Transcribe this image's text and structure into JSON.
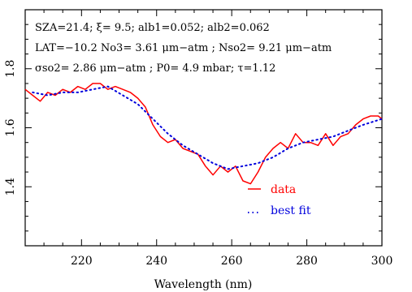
{
  "chart_data": {
    "type": "line",
    "title": "",
    "xlabel": "Wavelength (nm)",
    "ylabel": "",
    "xlim": [
      205,
      300
    ],
    "ylim": [
      1.2,
      2.0
    ],
    "x_ticks": [
      220,
      240,
      260,
      280,
      300
    ],
    "x_tick_labels": [
      "220",
      "240",
      "260",
      "280",
      "300"
    ],
    "y_ticks": [
      1.4,
      1.6,
      1.8
    ],
    "y_tick_labels": [
      "1.4",
      "1.6",
      "1.8"
    ],
    "grid": false,
    "legend_position": "lower-right-inside",
    "annotations": [
      "SZA=21.4; ξ= 9.5; alb1=0.052; alb2=0.062",
      "LAT=−10.2      No3= 3.61 μm−atm ; Nso2= 9.21 μm−atm",
      "σso2= 2.86 μm−atm ; P0= 4.9 mbar; τ=1.12"
    ],
    "series": [
      {
        "name": "data",
        "color": "#ff0000",
        "style": "solid",
        "x": [
          205,
          207,
          209,
          211,
          213,
          215,
          217,
          219,
          221,
          223,
          225,
          227,
          229,
          231,
          233,
          235,
          237,
          239,
          241,
          243,
          245,
          247,
          249,
          251,
          253,
          255,
          257,
          259,
          261,
          263,
          265,
          267,
          269,
          271,
          273,
          275,
          277,
          279,
          281,
          283,
          285,
          287,
          289,
          291,
          293,
          295,
          297,
          299,
          300
        ],
        "y": [
          1.73,
          1.71,
          1.69,
          1.72,
          1.71,
          1.73,
          1.72,
          1.74,
          1.73,
          1.75,
          1.75,
          1.73,
          1.74,
          1.73,
          1.72,
          1.7,
          1.67,
          1.61,
          1.57,
          1.55,
          1.56,
          1.53,
          1.52,
          1.51,
          1.47,
          1.44,
          1.47,
          1.45,
          1.47,
          1.42,
          1.41,
          1.45,
          1.5,
          1.53,
          1.55,
          1.53,
          1.58,
          1.55,
          1.55,
          1.54,
          1.58,
          1.54,
          1.57,
          1.58,
          1.61,
          1.63,
          1.64,
          1.64,
          1.63
        ]
      },
      {
        "name": "best fit",
        "color": "#0000dd",
        "style": "dotted",
        "x": [
          207,
          211,
          215,
          219,
          223,
          227,
          231,
          235,
          239,
          243,
          247,
          251,
          255,
          259,
          263,
          267,
          271,
          275,
          279,
          283,
          287,
          291,
          295,
          300
        ],
        "y": [
          1.72,
          1.71,
          1.72,
          1.72,
          1.73,
          1.74,
          1.71,
          1.68,
          1.63,
          1.58,
          1.54,
          1.51,
          1.48,
          1.46,
          1.47,
          1.48,
          1.5,
          1.53,
          1.55,
          1.56,
          1.57,
          1.59,
          1.61,
          1.63
        ]
      }
    ]
  }
}
